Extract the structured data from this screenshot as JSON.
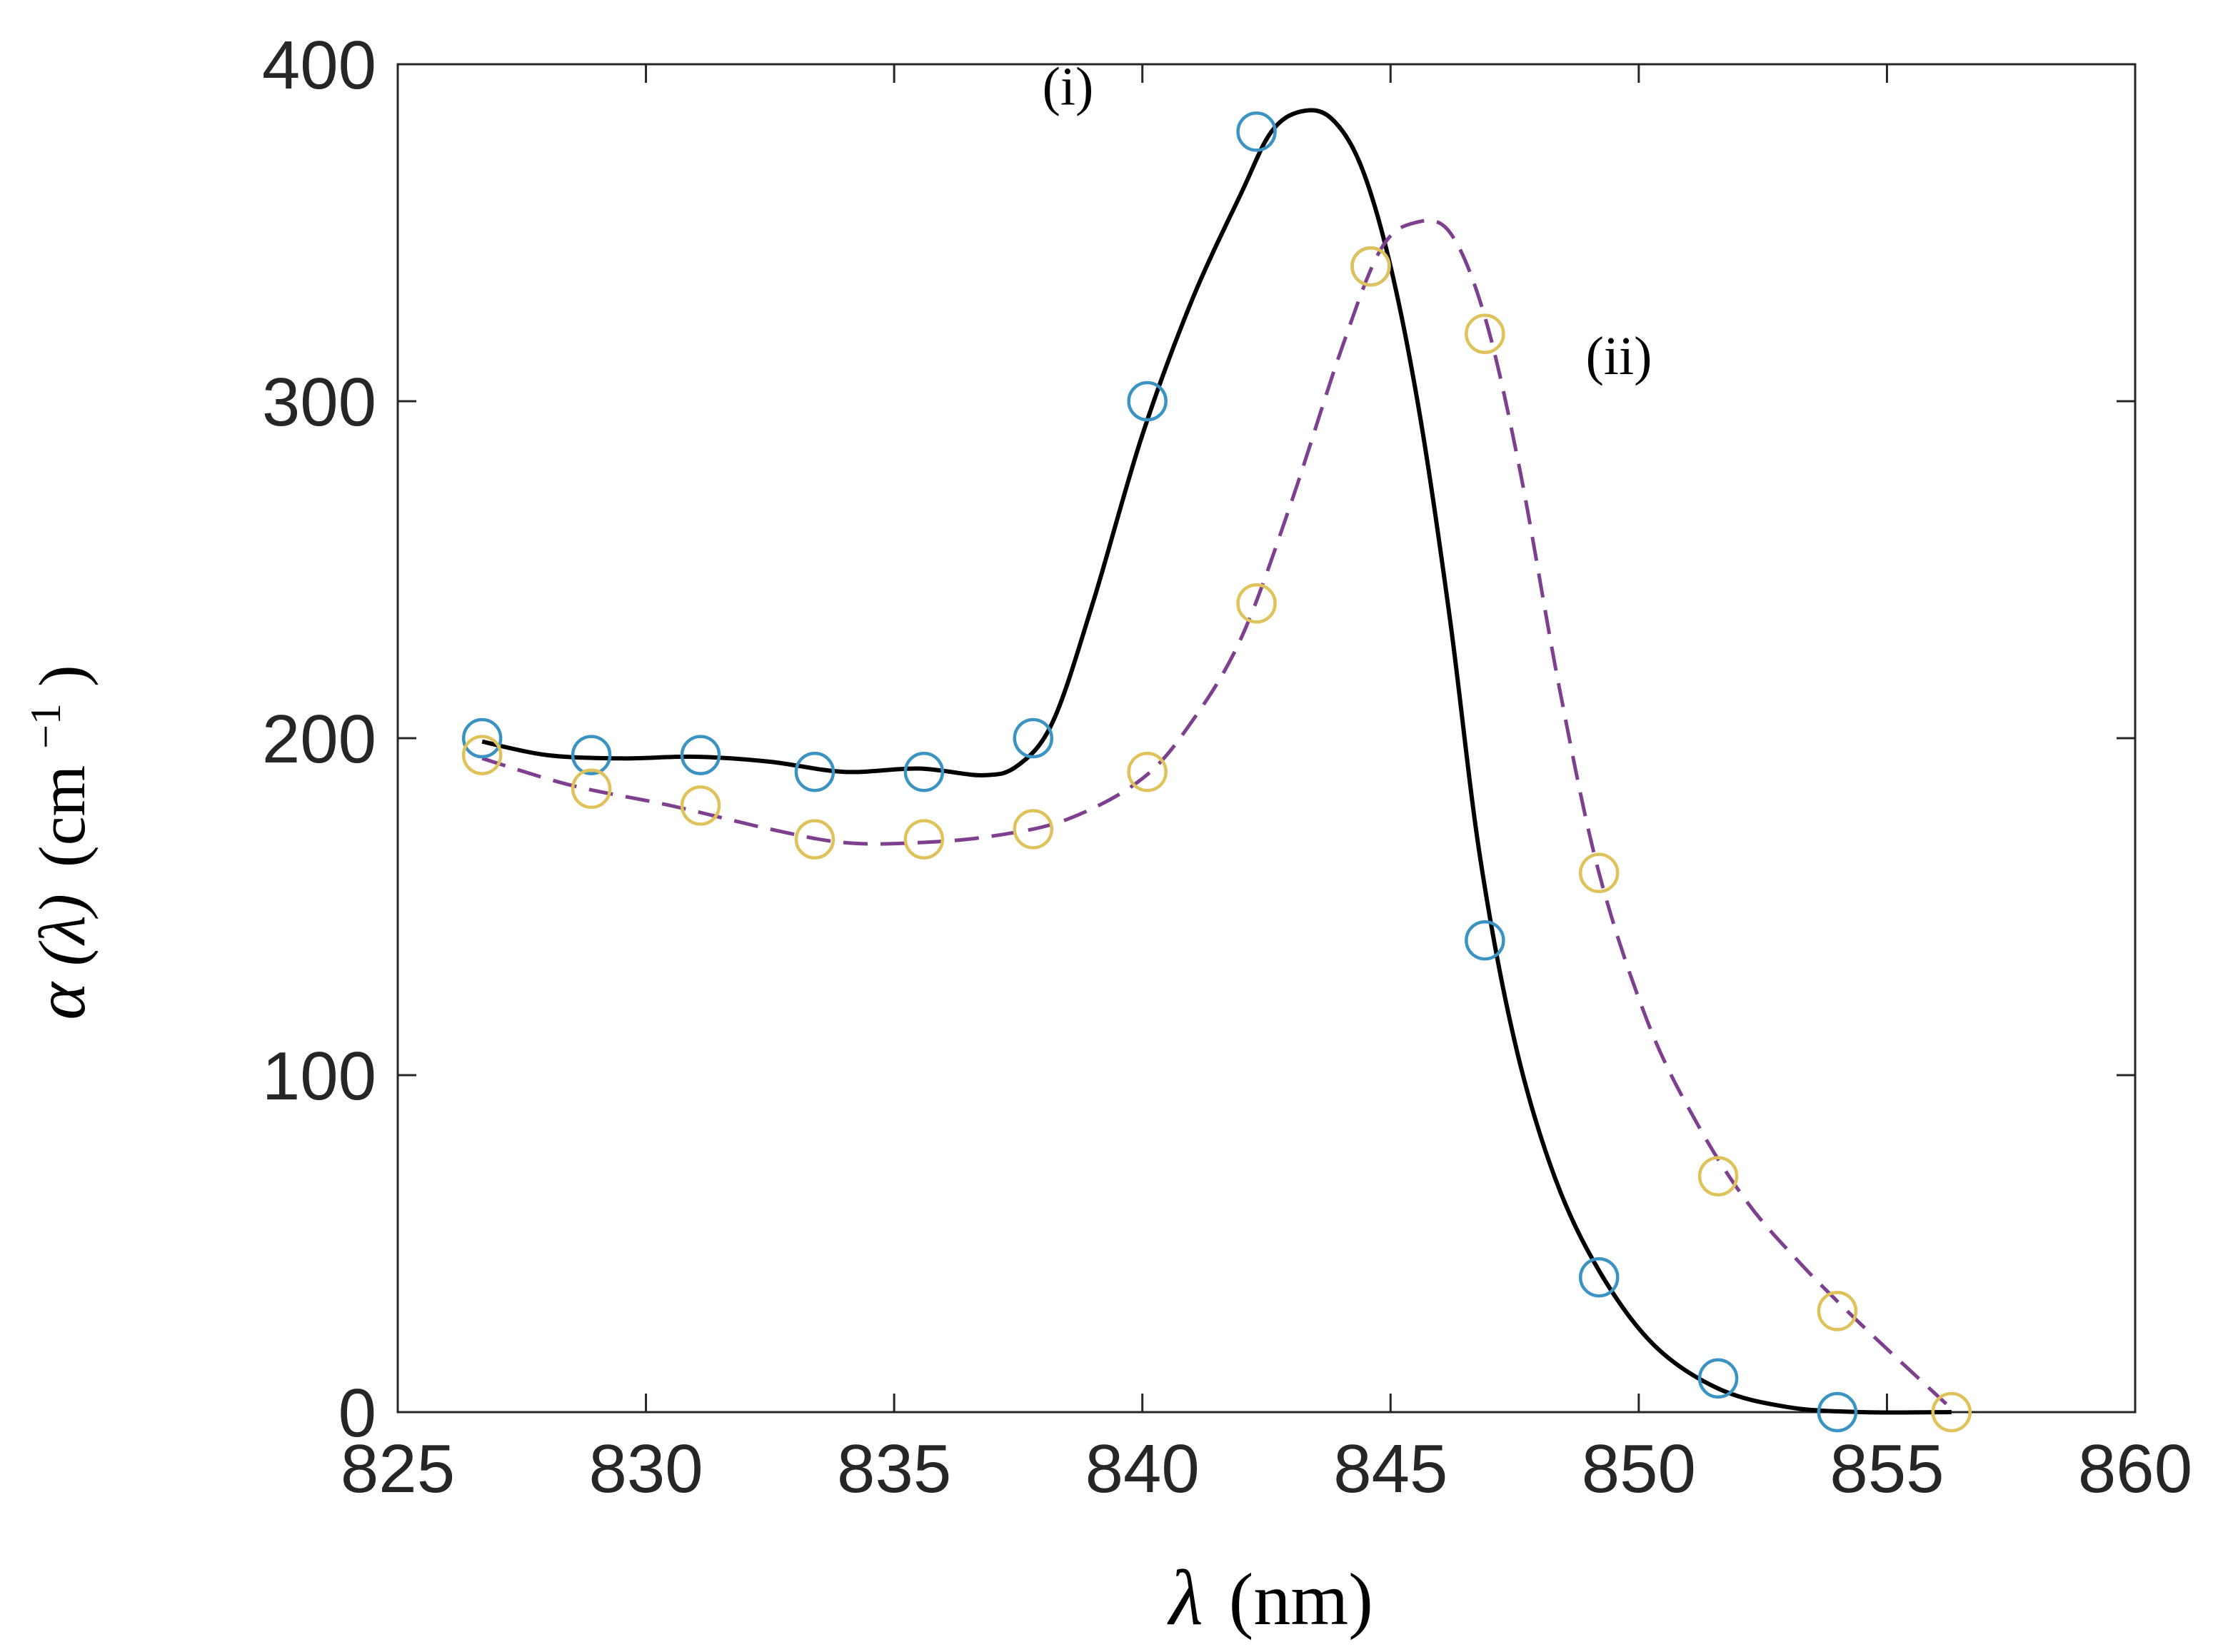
{
  "chart_data": {
    "type": "line",
    "title": "",
    "xlabel": {
      "symbol": "λ",
      "unit": "(nm)"
    },
    "ylabel": {
      "symbol": "α",
      "arg": "(λ)",
      "unit": "(cm",
      "exp": "−1",
      "close": ")"
    },
    "xlim": [
      825,
      860
    ],
    "ylim": [
      0,
      400
    ],
    "xticks": [
      825,
      830,
      835,
      840,
      845,
      850,
      855,
      860
    ],
    "yticks": [
      0,
      100,
      200,
      300,
      400
    ],
    "grid": false,
    "annotations": [
      {
        "text": "(i)",
        "x": 838.5,
        "y": 388
      },
      {
        "text": "(ii)",
        "x": 849.6,
        "y": 308
      }
    ],
    "series": [
      {
        "name": "(i)",
        "line_style": "solid",
        "line_color": "#000000",
        "marker_color": "#3a93c3",
        "points": [
          [
            826.7,
            200
          ],
          [
            828.9,
            195
          ],
          [
            831.1,
            195
          ],
          [
            833.4,
            190
          ],
          [
            835.6,
            190
          ],
          [
            837.8,
            200
          ],
          [
            840.1,
            300
          ],
          [
            842.3,
            380
          ],
          [
            844.6,
            340
          ],
          [
            846.9,
            140
          ],
          [
            849.2,
            40
          ],
          [
            851.6,
            10
          ],
          [
            854.0,
            0
          ]
        ],
        "curve": [
          [
            826.7,
            199
          ],
          [
            828.0,
            195
          ],
          [
            829.5,
            194
          ],
          [
            831.0,
            194.5
          ],
          [
            832.5,
            193
          ],
          [
            834.0,
            190
          ],
          [
            835.5,
            191
          ],
          [
            836.8,
            189
          ],
          [
            837.5,
            192
          ],
          [
            838.2,
            205
          ],
          [
            839.0,
            240
          ],
          [
            840.0,
            290
          ],
          [
            841.0,
            330
          ],
          [
            842.0,
            362
          ],
          [
            842.6,
            380
          ],
          [
            843.2,
            386
          ],
          [
            843.8,
            384
          ],
          [
            844.4,
            370
          ],
          [
            845.0,
            340
          ],
          [
            845.6,
            295
          ],
          [
            846.2,
            235
          ],
          [
            846.8,
            165
          ],
          [
            847.5,
            110
          ],
          [
            848.3,
            70
          ],
          [
            849.2,
            42
          ],
          [
            850.3,
            20
          ],
          [
            851.6,
            7
          ],
          [
            853.0,
            1.5
          ],
          [
            854.5,
            0
          ],
          [
            856.3,
            0
          ]
        ]
      },
      {
        "name": "(ii)",
        "line_style": "dashed",
        "line_color": "#7e3f8f",
        "marker_color": "#e0c25a",
        "points": [
          [
            826.7,
            195
          ],
          [
            828.9,
            185
          ],
          [
            831.1,
            180
          ],
          [
            833.4,
            170
          ],
          [
            835.6,
            170
          ],
          [
            837.8,
            173
          ],
          [
            840.1,
            190
          ],
          [
            842.3,
            240
          ],
          [
            844.6,
            340
          ],
          [
            846.9,
            320
          ],
          [
            849.2,
            160
          ],
          [
            851.6,
            70
          ],
          [
            854.0,
            30
          ],
          [
            856.3,
            0
          ]
        ],
        "curve": [
          [
            826.7,
            194
          ],
          [
            828.5,
            186
          ],
          [
            830.5,
            180
          ],
          [
            832.5,
            173
          ],
          [
            834.0,
            169
          ],
          [
            835.5,
            169
          ],
          [
            837.0,
            171
          ],
          [
            838.5,
            176
          ],
          [
            840.0,
            188
          ],
          [
            841.0,
            205
          ],
          [
            842.0,
            230
          ],
          [
            843.0,
            270
          ],
          [
            844.0,
            315
          ],
          [
            844.8,
            345
          ],
          [
            845.5,
            353
          ],
          [
            846.2,
            350
          ],
          [
            846.9,
            325
          ],
          [
            847.6,
            280
          ],
          [
            848.4,
            215
          ],
          [
            849.2,
            160
          ],
          [
            850.2,
            115
          ],
          [
            851.2,
            85
          ],
          [
            852.2,
            62
          ],
          [
            853.2,
            45
          ],
          [
            854.2,
            30
          ],
          [
            855.2,
            16
          ],
          [
            856.3,
            1
          ]
        ]
      }
    ]
  }
}
